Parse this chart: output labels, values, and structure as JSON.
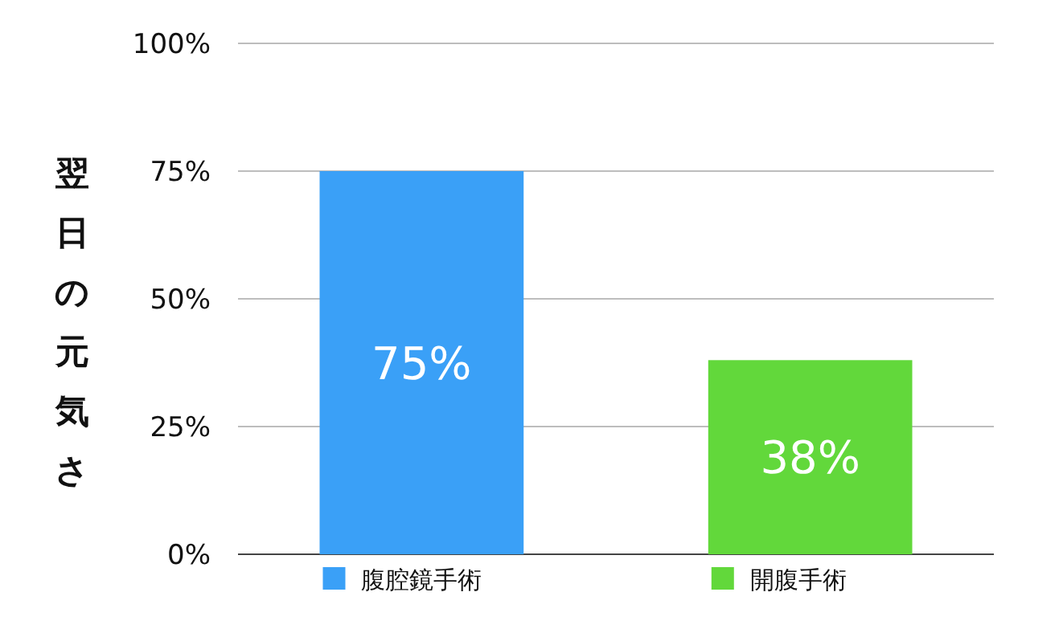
{
  "chart_data": {
    "type": "bar",
    "ylabel": "翌日の元気さ",
    "categories": [
      null,
      null
    ],
    "series": [
      {
        "name": "腹腔鏡手術",
        "color": "#3aa0f7",
        "values": [
          75,
          null
        ],
        "value_labels": [
          "75%",
          null
        ]
      },
      {
        "name": "開腹手術",
        "color": "#62d83b",
        "values": [
          null,
          38
        ],
        "value_labels": [
          null,
          "38%"
        ]
      }
    ],
    "ylim": [
      0,
      100
    ],
    "yticks": [
      {
        "value": 0,
        "label": "0%"
      },
      {
        "value": 25,
        "label": "25%"
      },
      {
        "value": 50,
        "label": "50%"
      },
      {
        "value": 75,
        "label": "75%"
      },
      {
        "value": 100,
        "label": "100%"
      }
    ],
    "grid": "y",
    "legend": "bottom"
  }
}
